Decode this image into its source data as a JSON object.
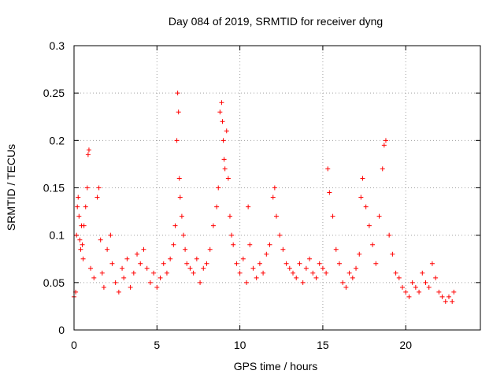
{
  "chart_data": {
    "type": "scatter",
    "title": "Day 084 of 2019, SRMTID for receiver dyng",
    "xlabel": "GPS time / hours",
    "ylabel": "SRMTID / TECUs",
    "xlim": [
      0,
      24.5
    ],
    "ylim": [
      0,
      0.3
    ],
    "x_ticks": [
      0,
      5,
      10,
      15,
      20
    ],
    "y_ticks": [
      0,
      0.05,
      0.1,
      0.15,
      0.2,
      0.25,
      0.3
    ],
    "x_tick_labels": [
      "0",
      "5",
      "10",
      "15",
      "20"
    ],
    "y_tick_labels": [
      "0",
      "0.05",
      "0.1",
      "0.15",
      "0.2",
      "0.25",
      "0.3"
    ],
    "grid": true,
    "marker": "+",
    "color": "#ff0000",
    "series": [
      {
        "name": "SRMTID",
        "x": [
          0.0,
          0.1,
          0.15,
          0.2,
          0.25,
          0.3,
          0.35,
          0.4,
          0.45,
          0.5,
          0.55,
          0.6,
          0.7,
          0.8,
          0.85,
          0.9,
          1.0,
          1.2,
          1.4,
          1.5,
          1.6,
          1.7,
          1.8,
          2.0,
          2.2,
          2.3,
          2.5,
          2.7,
          2.9,
          3.0,
          3.2,
          3.4,
          3.6,
          3.8,
          4.0,
          4.2,
          4.4,
          4.6,
          4.8,
          5.0,
          5.2,
          5.4,
          5.6,
          5.8,
          6.0,
          6.1,
          6.2,
          6.25,
          6.3,
          6.35,
          6.4,
          6.5,
          6.6,
          6.7,
          6.8,
          7.0,
          7.2,
          7.4,
          7.6,
          7.8,
          8.0,
          8.2,
          8.4,
          8.6,
          8.7,
          8.8,
          8.9,
          8.95,
          9.0,
          9.05,
          9.1,
          9.2,
          9.3,
          9.4,
          9.5,
          9.6,
          9.8,
          10.0,
          10.2,
          10.4,
          10.5,
          10.6,
          10.8,
          11.0,
          11.2,
          11.4,
          11.6,
          11.8,
          12.0,
          12.1,
          12.2,
          12.4,
          12.6,
          12.8,
          13.0,
          13.2,
          13.4,
          13.6,
          13.8,
          14.0,
          14.2,
          14.4,
          14.6,
          14.8,
          15.0,
          15.2,
          15.3,
          15.4,
          15.6,
          15.8,
          16.0,
          16.2,
          16.4,
          16.6,
          16.8,
          17.0,
          17.2,
          17.3,
          17.4,
          17.6,
          17.8,
          18.0,
          18.2,
          18.4,
          18.6,
          18.7,
          18.8,
          19.0,
          19.2,
          19.4,
          19.6,
          19.8,
          20.0,
          20.2,
          20.4,
          20.6,
          20.8,
          21.0,
          21.2,
          21.4,
          21.6,
          21.8,
          22.0,
          22.2,
          22.4,
          22.6,
          22.8,
          22.9
        ],
        "y": [
          0.035,
          0.04,
          0.1,
          0.13,
          0.14,
          0.12,
          0.095,
          0.085,
          0.11,
          0.09,
          0.075,
          0.11,
          0.13,
          0.15,
          0.185,
          0.19,
          0.065,
          0.055,
          0.14,
          0.15,
          0.095,
          0.06,
          0.045,
          0.085,
          0.1,
          0.07,
          0.05,
          0.04,
          0.065,
          0.055,
          0.075,
          0.045,
          0.06,
          0.08,
          0.07,
          0.085,
          0.065,
          0.05,
          0.06,
          0.045,
          0.055,
          0.07,
          0.06,
          0.075,
          0.09,
          0.11,
          0.2,
          0.25,
          0.23,
          0.16,
          0.14,
          0.12,
          0.1,
          0.085,
          0.07,
          0.065,
          0.06,
          0.075,
          0.05,
          0.065,
          0.07,
          0.085,
          0.11,
          0.13,
          0.15,
          0.23,
          0.24,
          0.22,
          0.2,
          0.18,
          0.17,
          0.21,
          0.16,
          0.12,
          0.1,
          0.09,
          0.07,
          0.06,
          0.075,
          0.05,
          0.13,
          0.09,
          0.065,
          0.055,
          0.07,
          0.06,
          0.08,
          0.09,
          0.14,
          0.15,
          0.12,
          0.1,
          0.085,
          0.07,
          0.065,
          0.06,
          0.055,
          0.07,
          0.05,
          0.065,
          0.075,
          0.06,
          0.055,
          0.07,
          0.065,
          0.06,
          0.17,
          0.145,
          0.12,
          0.085,
          0.07,
          0.05,
          0.045,
          0.06,
          0.055,
          0.065,
          0.08,
          0.14,
          0.16,
          0.13,
          0.11,
          0.09,
          0.07,
          0.12,
          0.17,
          0.195,
          0.2,
          0.1,
          0.08,
          0.06,
          0.055,
          0.045,
          0.04,
          0.035,
          0.05,
          0.045,
          0.04,
          0.06,
          0.05,
          0.045,
          0.07,
          0.055,
          0.04,
          0.035,
          0.03,
          0.035,
          0.03,
          0.04
        ]
      }
    ]
  }
}
